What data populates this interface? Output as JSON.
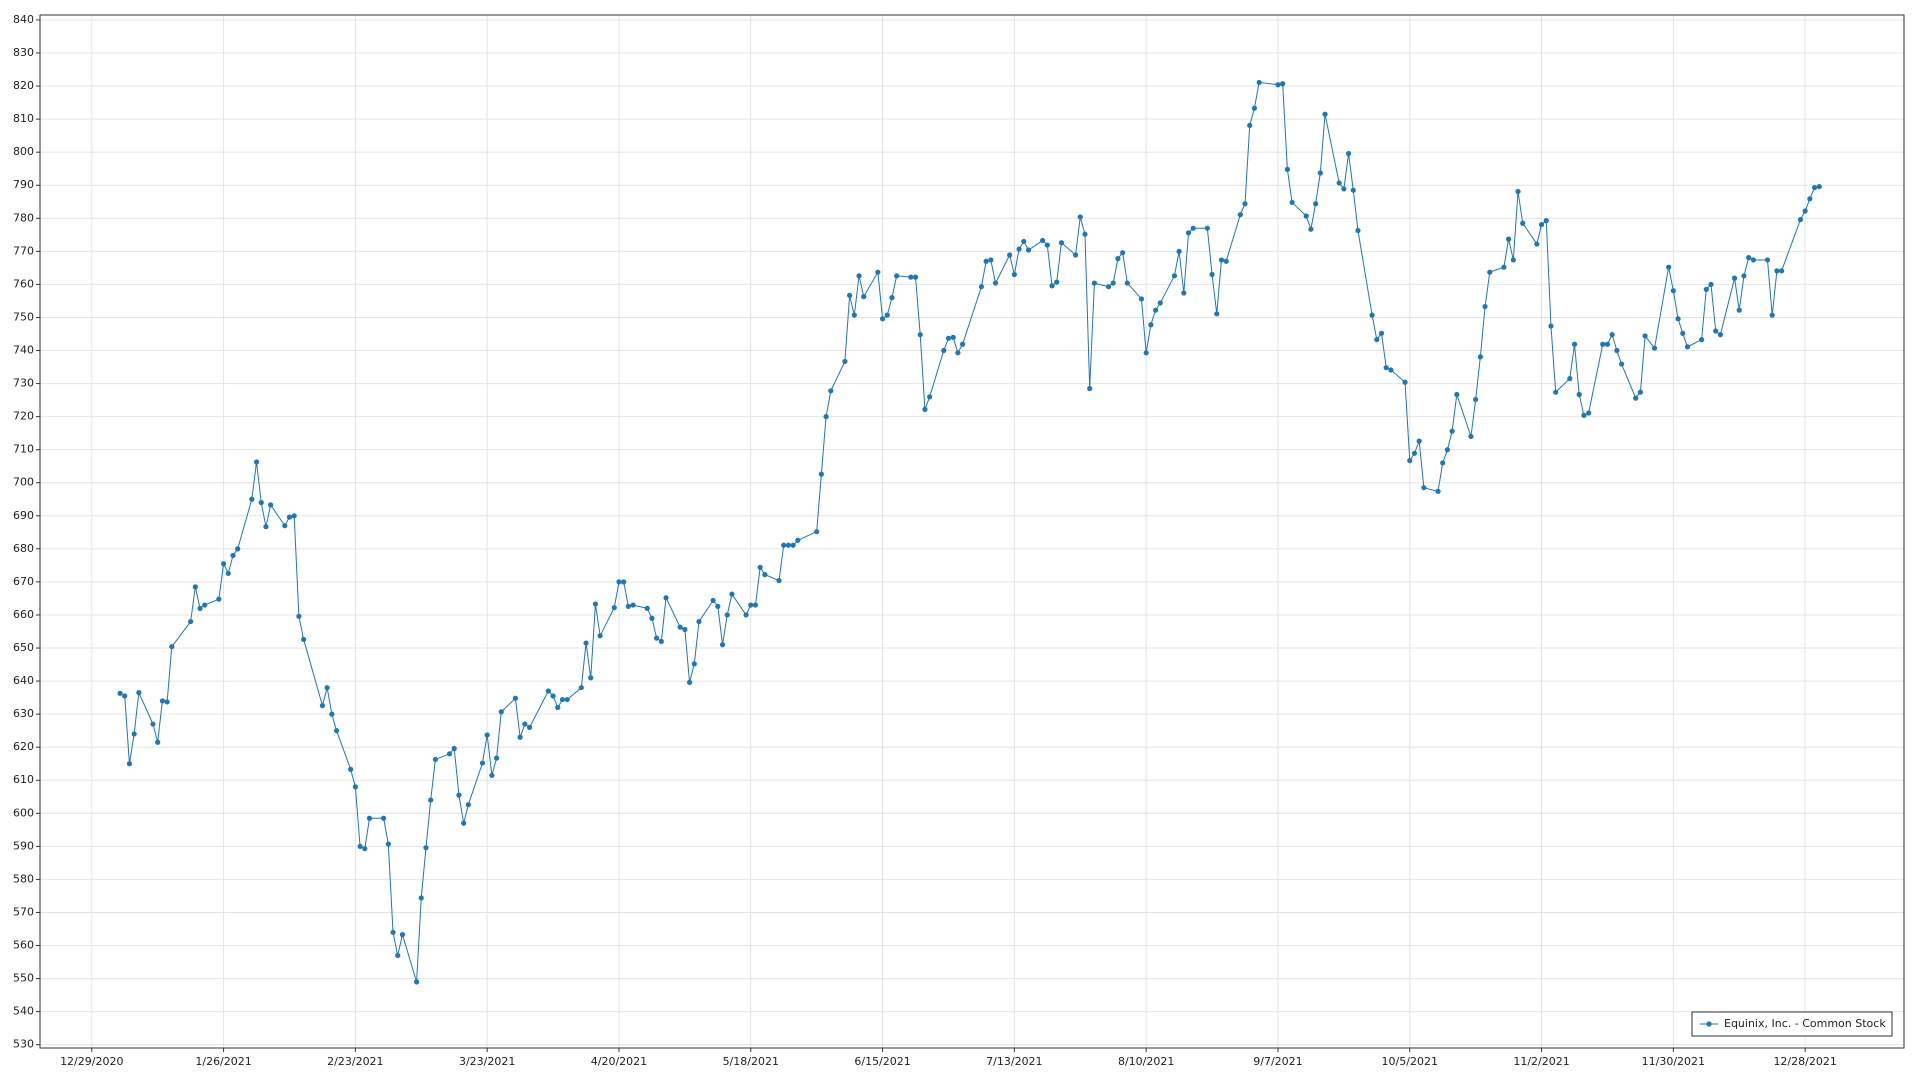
{
  "chart_data": {
    "type": "line",
    "x": [
      "1/4/2021",
      "1/5/2021",
      "1/6/2021",
      "1/7/2021",
      "1/8/2021",
      "1/11/2021",
      "1/12/2021",
      "1/13/2021",
      "1/14/2021",
      "1/15/2021",
      "1/19/2021",
      "1/20/2021",
      "1/21/2021",
      "1/22/2021",
      "1/25/2021",
      "1/26/2021",
      "1/27/2021",
      "1/28/2021",
      "1/29/2021",
      "2/1/2021",
      "2/2/2021",
      "2/3/2021",
      "2/4/2021",
      "2/5/2021",
      "2/8/2021",
      "2/9/2021",
      "2/10/2021",
      "2/11/2021",
      "2/12/2021",
      "2/16/2021",
      "2/17/2021",
      "2/18/2021",
      "2/19/2021",
      "2/22/2021",
      "2/23/2021",
      "2/24/2021",
      "2/25/2021",
      "2/26/2021",
      "3/1/2021",
      "3/2/2021",
      "3/3/2021",
      "3/4/2021",
      "3/5/2021",
      "3/8/2021",
      "3/9/2021",
      "3/10/2021",
      "3/11/2021",
      "3/12/2021",
      "3/15/2021",
      "3/16/2021",
      "3/17/2021",
      "3/18/2021",
      "3/19/2021",
      "3/22/2021",
      "3/23/2021",
      "3/24/2021",
      "3/25/2021",
      "3/26/2021",
      "3/29/2021",
      "3/30/2021",
      "3/31/2021",
      "4/1/2021",
      "4/5/2021",
      "4/6/2021",
      "4/7/2021",
      "4/8/2021",
      "4/9/2021",
      "4/12/2021",
      "4/13/2021",
      "4/14/2021",
      "4/15/2021",
      "4/16/2021",
      "4/19/2021",
      "4/20/2021",
      "4/21/2021",
      "4/22/2021",
      "4/23/2021",
      "4/26/2021",
      "4/27/2021",
      "4/28/2021",
      "4/29/2021",
      "4/30/2021",
      "5/3/2021",
      "5/4/2021",
      "5/5/2021",
      "5/6/2021",
      "5/7/2021",
      "5/10/2021",
      "5/11/2021",
      "5/12/2021",
      "5/13/2021",
      "5/14/2021",
      "5/17/2021",
      "5/18/2021",
      "5/19/2021",
      "5/20/2021",
      "5/21/2021",
      "5/24/2021",
      "5/25/2021",
      "5/26/2021",
      "5/27/2021",
      "5/28/2021",
      "6/1/2021",
      "6/2/2021",
      "6/3/2021",
      "6/4/2021",
      "6/7/2021",
      "6/8/2021",
      "6/9/2021",
      "6/10/2021",
      "6/11/2021",
      "6/14/2021",
      "6/15/2021",
      "6/16/2021",
      "6/17/2021",
      "6/18/2021",
      "6/21/2021",
      "6/22/2021",
      "6/23/2021",
      "6/24/2021",
      "6/25/2021",
      "6/28/2021",
      "6/29/2021",
      "6/30/2021",
      "7/1/2021",
      "7/2/2021",
      "7/6/2021",
      "7/7/2021",
      "7/8/2021",
      "7/9/2021",
      "7/12/2021",
      "7/13/2021",
      "7/14/2021",
      "7/15/2021",
      "7/16/2021",
      "7/19/2021",
      "7/20/2021",
      "7/21/2021",
      "7/22/2021",
      "7/23/2021",
      "7/26/2021",
      "7/27/2021",
      "7/28/2021",
      "7/29/2021",
      "7/30/2021",
      "8/2/2021",
      "8/3/2021",
      "8/4/2021",
      "8/5/2021",
      "8/6/2021",
      "8/9/2021",
      "8/10/2021",
      "8/11/2021",
      "8/12/2021",
      "8/13/2021",
      "8/16/2021",
      "8/17/2021",
      "8/18/2021",
      "8/19/2021",
      "8/20/2021",
      "8/23/2021",
      "8/24/2021",
      "8/25/2021",
      "8/26/2021",
      "8/27/2021",
      "8/30/2021",
      "8/31/2021",
      "9/1/2021",
      "9/2/2021",
      "9/3/2021",
      "9/7/2021",
      "9/8/2021",
      "9/9/2021",
      "9/10/2021",
      "9/13/2021",
      "9/14/2021",
      "9/15/2021",
      "9/16/2021",
      "9/17/2021",
      "9/20/2021",
      "9/21/2021",
      "9/22/2021",
      "9/23/2021",
      "9/24/2021",
      "9/27/2021",
      "9/28/2021",
      "9/29/2021",
      "9/30/2021",
      "10/1/2021",
      "10/4/2021",
      "10/5/2021",
      "10/6/2021",
      "10/7/2021",
      "10/8/2021",
      "10/11/2021",
      "10/12/2021",
      "10/13/2021",
      "10/14/2021",
      "10/15/2021",
      "10/18/2021",
      "10/19/2021",
      "10/20/2021",
      "10/21/2021",
      "10/22/2021",
      "10/25/2021",
      "10/26/2021",
      "10/27/2021",
      "10/28/2021",
      "10/29/2021",
      "11/1/2021",
      "11/2/2021",
      "11/3/2021",
      "11/4/2021",
      "11/5/2021",
      "11/8/2021",
      "11/9/2021",
      "11/10/2021",
      "11/11/2021",
      "11/12/2021",
      "11/15/2021",
      "11/16/2021",
      "11/17/2021",
      "11/18/2021",
      "11/19/2021",
      "11/22/2021",
      "11/23/2021",
      "11/24/2021",
      "11/26/2021",
      "11/29/2021",
      "11/30/2021",
      "12/1/2021",
      "12/2/2021",
      "12/3/2021",
      "12/6/2021",
      "12/7/2021",
      "12/8/2021",
      "12/9/2021",
      "12/10/2021",
      "12/13/2021",
      "12/14/2021",
      "12/15/2021",
      "12/16/2021",
      "12/17/2021",
      "12/20/2021",
      "12/21/2021",
      "12/22/2021",
      "12/23/2021",
      "12/27/2021",
      "12/28/2021",
      "12/29/2021",
      "12/30/2021",
      "12/31/2021"
    ],
    "series": [
      {
        "name": "Equinix, Inc. - Common Stock",
        "color": "#1f77b4",
        "values": [
          636.3,
          635.5,
          615,
          624,
          636.5,
          627,
          621.5,
          634,
          633.7,
          650.4,
          658,
          668.5,
          662,
          663,
          664.8,
          675.5,
          672.6,
          678,
          680,
          695,
          706.3,
          694,
          686.7,
          693.3,
          687,
          689.6,
          690,
          659.6,
          652.6,
          632.6,
          638,
          630,
          625,
          613.3,
          608,
          590,
          589.3,
          598.5,
          598.5,
          590.7,
          564,
          557,
          563.3,
          549,
          574.4,
          589.6,
          604,
          616.3,
          618,
          619.6,
          605.5,
          597,
          602.6,
          615.2,
          623.7,
          611.5,
          616.7,
          630.7,
          634.8,
          623,
          627,
          626,
          637,
          635.5,
          632,
          634.4,
          634.4,
          638,
          651.5,
          641,
          663.3,
          653.7,
          662.2,
          670,
          670,
          662.6,
          663,
          662,
          659,
          653,
          652,
          665.2,
          656.3,
          655.6,
          639.6,
          645.2,
          658,
          664.4,
          662.6,
          651,
          660,
          666.3,
          660,
          663,
          663,
          674.4,
          672.2,
          670.4,
          681.1,
          681.1,
          681.1,
          682.6,
          685.2,
          702.6,
          720,
          727.8,
          736.7,
          756.7,
          750.7,
          762.6,
          756.3,
          763.7,
          749.6,
          750.7,
          756,
          762.6,
          762.2,
          762.2,
          744.8,
          722.2,
          726,
          740,
          743.7,
          744,
          739.3,
          741.9,
          759.3,
          767,
          767.4,
          760.4,
          768.9,
          763,
          770.7,
          773,
          770.4,
          773.3,
          771.9,
          759.6,
          760.7,
          772.6,
          768.9,
          780.4,
          775.2,
          728.5,
          760.4,
          759.3,
          760.4,
          767.8,
          769.6,
          760.4,
          755.6,
          739.3,
          747.8,
          752.2,
          754.4,
          762.6,
          770,
          757.4,
          775.6,
          777,
          777,
          763,
          751.1,
          767.4,
          767,
          781.1,
          784.4,
          808.1,
          813.3,
          821.1,
          820.4,
          820.7,
          794.8,
          784.8,
          780.7,
          776.7,
          784.4,
          793.7,
          811.5,
          790.7,
          788.9,
          799.6,
          788.5,
          776.3,
          750.7,
          743.3,
          745.2,
          734.8,
          734.1,
          730.4,
          706.7,
          708.9,
          712.6,
          698.5,
          697.4,
          706,
          710,
          715.6,
          726.7,
          714,
          725.2,
          738.1,
          753.3,
          763.7,
          765.2,
          773.7,
          767.4,
          788.1,
          778.5,
          772.2,
          778.1,
          779.3,
          747.4,
          727.4,
          731.5,
          741.9,
          726.7,
          720.4,
          721.1,
          741.9,
          741.9,
          744.8,
          740,
          735.9,
          725.6,
          727.4,
          744.4,
          740.7,
          765.2,
          758.1,
          749.6,
          745.2,
          741.1,
          743.3,
          758.5,
          760,
          745.9,
          744.8,
          761.9,
          752.2,
          762.6,
          768.1,
          767.4,
          767.4,
          750.7,
          764.1,
          764.1,
          779.6,
          782.2,
          785.9,
          789.3,
          789.6
        ]
      }
    ],
    "xlim": [
      "12/18/2020",
      "1/18/2022"
    ],
    "xticks": [
      "12/29/2020",
      "1/26/2021",
      "2/23/2021",
      "3/23/2021",
      "4/20/2021",
      "5/18/2021",
      "6/15/2021",
      "7/13/2021",
      "8/10/2021",
      "9/7/2021",
      "10/5/2021",
      "11/2/2021",
      "11/30/2021",
      "12/28/2021"
    ],
    "ylim": [
      529,
      841.5
    ],
    "yticks": [
      530,
      540,
      550,
      560,
      570,
      580,
      590,
      600,
      610,
      620,
      630,
      640,
      650,
      660,
      670,
      680,
      690,
      700,
      710,
      720,
      730,
      740,
      750,
      760,
      770,
      780,
      790,
      800,
      810,
      820,
      830,
      840
    ],
    "grid": true,
    "legend": "lower right"
  }
}
